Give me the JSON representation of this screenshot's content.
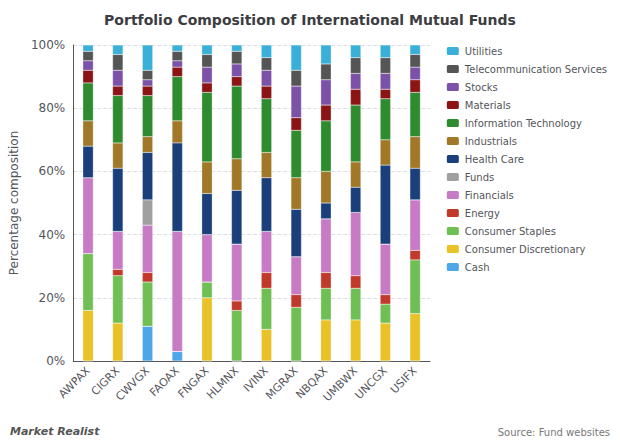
{
  "chart_data": {
    "type": "bar",
    "stacked": true,
    "title": "Portfolio Composition of International Mutual Funds",
    "ylabel": "Percentage composition",
    "categories": [
      "AWPAX",
      "CIGRX",
      "CWVGX",
      "FAOAX",
      "FNGAX",
      "HLMNX",
      "IVINX",
      "MGRAX",
      "NBQAX",
      "UMBWX",
      "UNCGX",
      "USIFX"
    ],
    "series": [
      {
        "name": "Cash",
        "color": "#4da6e8",
        "values": [
          0,
          0,
          11,
          3,
          0,
          0,
          0,
          0,
          0,
          0,
          0,
          0
        ]
      },
      {
        "name": "Consumer Discretionary",
        "color": "#e8c227",
        "values": [
          16,
          12,
          0,
          0,
          20,
          0,
          10,
          0,
          13,
          13,
          12,
          15
        ]
      },
      {
        "name": "Consumer Staples",
        "color": "#70bf54",
        "values": [
          18,
          15,
          14,
          0,
          5,
          16,
          13,
          17,
          10,
          10,
          6,
          17
        ]
      },
      {
        "name": "Energy",
        "color": "#c0392b",
        "values": [
          0,
          2,
          3,
          0,
          0,
          3,
          5,
          4,
          5,
          4,
          3,
          3
        ]
      },
      {
        "name": "Financials",
        "color": "#c77bc4",
        "values": [
          24,
          12,
          15,
          38,
          15,
          18,
          13,
          12,
          17,
          20,
          16,
          16
        ]
      },
      {
        "name": "Funds",
        "color": "#a0a0a0",
        "values": [
          0,
          0,
          8,
          0,
          0,
          0,
          0,
          0,
          0,
          0,
          0,
          0
        ]
      },
      {
        "name": "Health Care",
        "color": "#1a3f7a",
        "values": [
          10,
          20,
          15,
          28,
          13,
          17,
          17,
          15,
          5,
          8,
          25,
          10
        ]
      },
      {
        "name": "Industrials",
        "color": "#a07828",
        "values": [
          8,
          8,
          5,
          7,
          10,
          10,
          8,
          10,
          10,
          8,
          8,
          10
        ]
      },
      {
        "name": "Information Technology",
        "color": "#2e8b2e",
        "values": [
          12,
          15,
          13,
          14,
          22,
          23,
          17,
          15,
          16,
          18,
          13,
          14
        ]
      },
      {
        "name": "Materials",
        "color": "#8b1515",
        "values": [
          4,
          3,
          3,
          3,
          3,
          3,
          4,
          4,
          5,
          5,
          3,
          4
        ]
      },
      {
        "name": "Stocks",
        "color": "#7b52a8",
        "values": [
          3,
          5,
          2,
          2,
          5,
          4,
          5,
          10,
          8,
          5,
          5,
          4
        ]
      },
      {
        "name": "Telecommunication Services",
        "color": "#555555",
        "values": [
          3,
          5,
          3,
          3,
          4,
          4,
          4,
          5,
          5,
          5,
          5,
          4
        ]
      },
      {
        "name": "Utilities",
        "color": "#3ab0d8",
        "values": [
          2,
          3,
          8,
          2,
          3,
          2,
          4,
          8,
          6,
          4,
          4,
          3
        ]
      }
    ],
    "ylim": [
      0,
      100
    ],
    "yticks": [
      {
        "value": 0,
        "label": "0%"
      },
      {
        "value": 20,
        "label": "20%"
      },
      {
        "value": 40,
        "label": "40%"
      },
      {
        "value": 60,
        "label": "60%"
      },
      {
        "value": 80,
        "label": "80%"
      },
      {
        "value": 100,
        "label": "100%"
      }
    ],
    "grid": true,
    "legend": "upper right",
    "annotations": [
      "Market Realist",
      "Source: Fund websites"
    ]
  }
}
